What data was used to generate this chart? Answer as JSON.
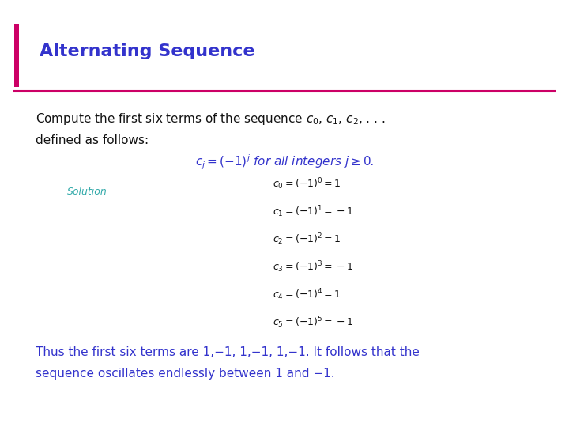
{
  "title": "Alternating Sequence",
  "title_color": "#3333cc",
  "title_fontsize": 16,
  "accent_bar_color": "#cc0066",
  "bg_color": "#ffffff",
  "body_text_color": "#111111",
  "formula_color": "#3333cc",
  "solution_color": "#33aaaa",
  "math_color": "#111111",
  "equations": [
    "$c_0 = (-1)^0 = 1$",
    "$c_1 = (-1)^1 = -1$",
    "$c_2 = (-1)^2 = 1$",
    "$c_3 = (-1)^3 = -1$",
    "$c_4 = (-1)^4 = 1$",
    "$c_5 = (-1)^5 = -1$"
  ],
  "conclusion_line1": "Thus the first six terms are 1,−1, 1,−1, 1,−1. It follows that the",
  "conclusion_line2": "sequence oscillates endlessly between 1 and −1.",
  "conclusion_color": "#3333cc",
  "solution_label": "Solution"
}
